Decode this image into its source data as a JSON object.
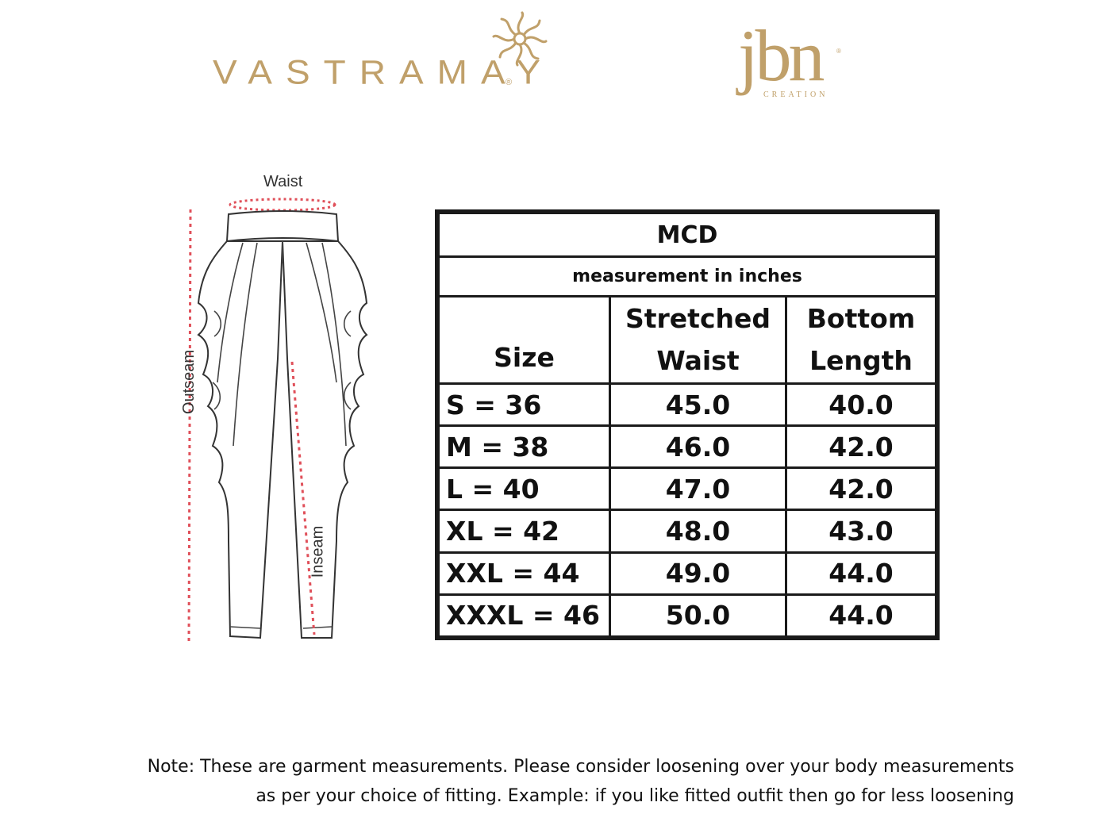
{
  "brands": {
    "vastramay": "VASTRAMAY",
    "vastramay_mark": "®",
    "jbn": "jbn",
    "jbn_sub": "CREATION",
    "jbn_mark": "®",
    "color": "#c0a06a"
  },
  "diagram": {
    "waist_label": "Waist",
    "outseam_label": "Outseam",
    "inseam_label": "Inseam",
    "measure_line_color": "#e0505a"
  },
  "table": {
    "title": "MCD",
    "unit_note": "measurement in inches",
    "headers": {
      "size": "Size",
      "waist_line1": "Stretched",
      "waist_line2": "Waist",
      "length_line1": "Bottom",
      "length_line2": "Length"
    },
    "rows": [
      {
        "size": "S = 36",
        "waist": "45.0",
        "length": "40.0"
      },
      {
        "size": "M = 38",
        "waist": "46.0",
        "length": "42.0"
      },
      {
        "size": "L = 40",
        "waist": "47.0",
        "length": "42.0"
      },
      {
        "size": "XL = 42",
        "waist": "48.0",
        "length": "43.0"
      },
      {
        "size": "XXL = 44",
        "waist": "49.0",
        "length": "44.0"
      },
      {
        "size": "XXXL = 46",
        "waist": "50.0",
        "length": "44.0"
      }
    ]
  },
  "note": {
    "line1": "Note: These are garment measurements. Please consider loosening over your body measurements",
    "line2": "as per your choice of fitting. Example: if you like fitted outfit then go for less loosening"
  }
}
